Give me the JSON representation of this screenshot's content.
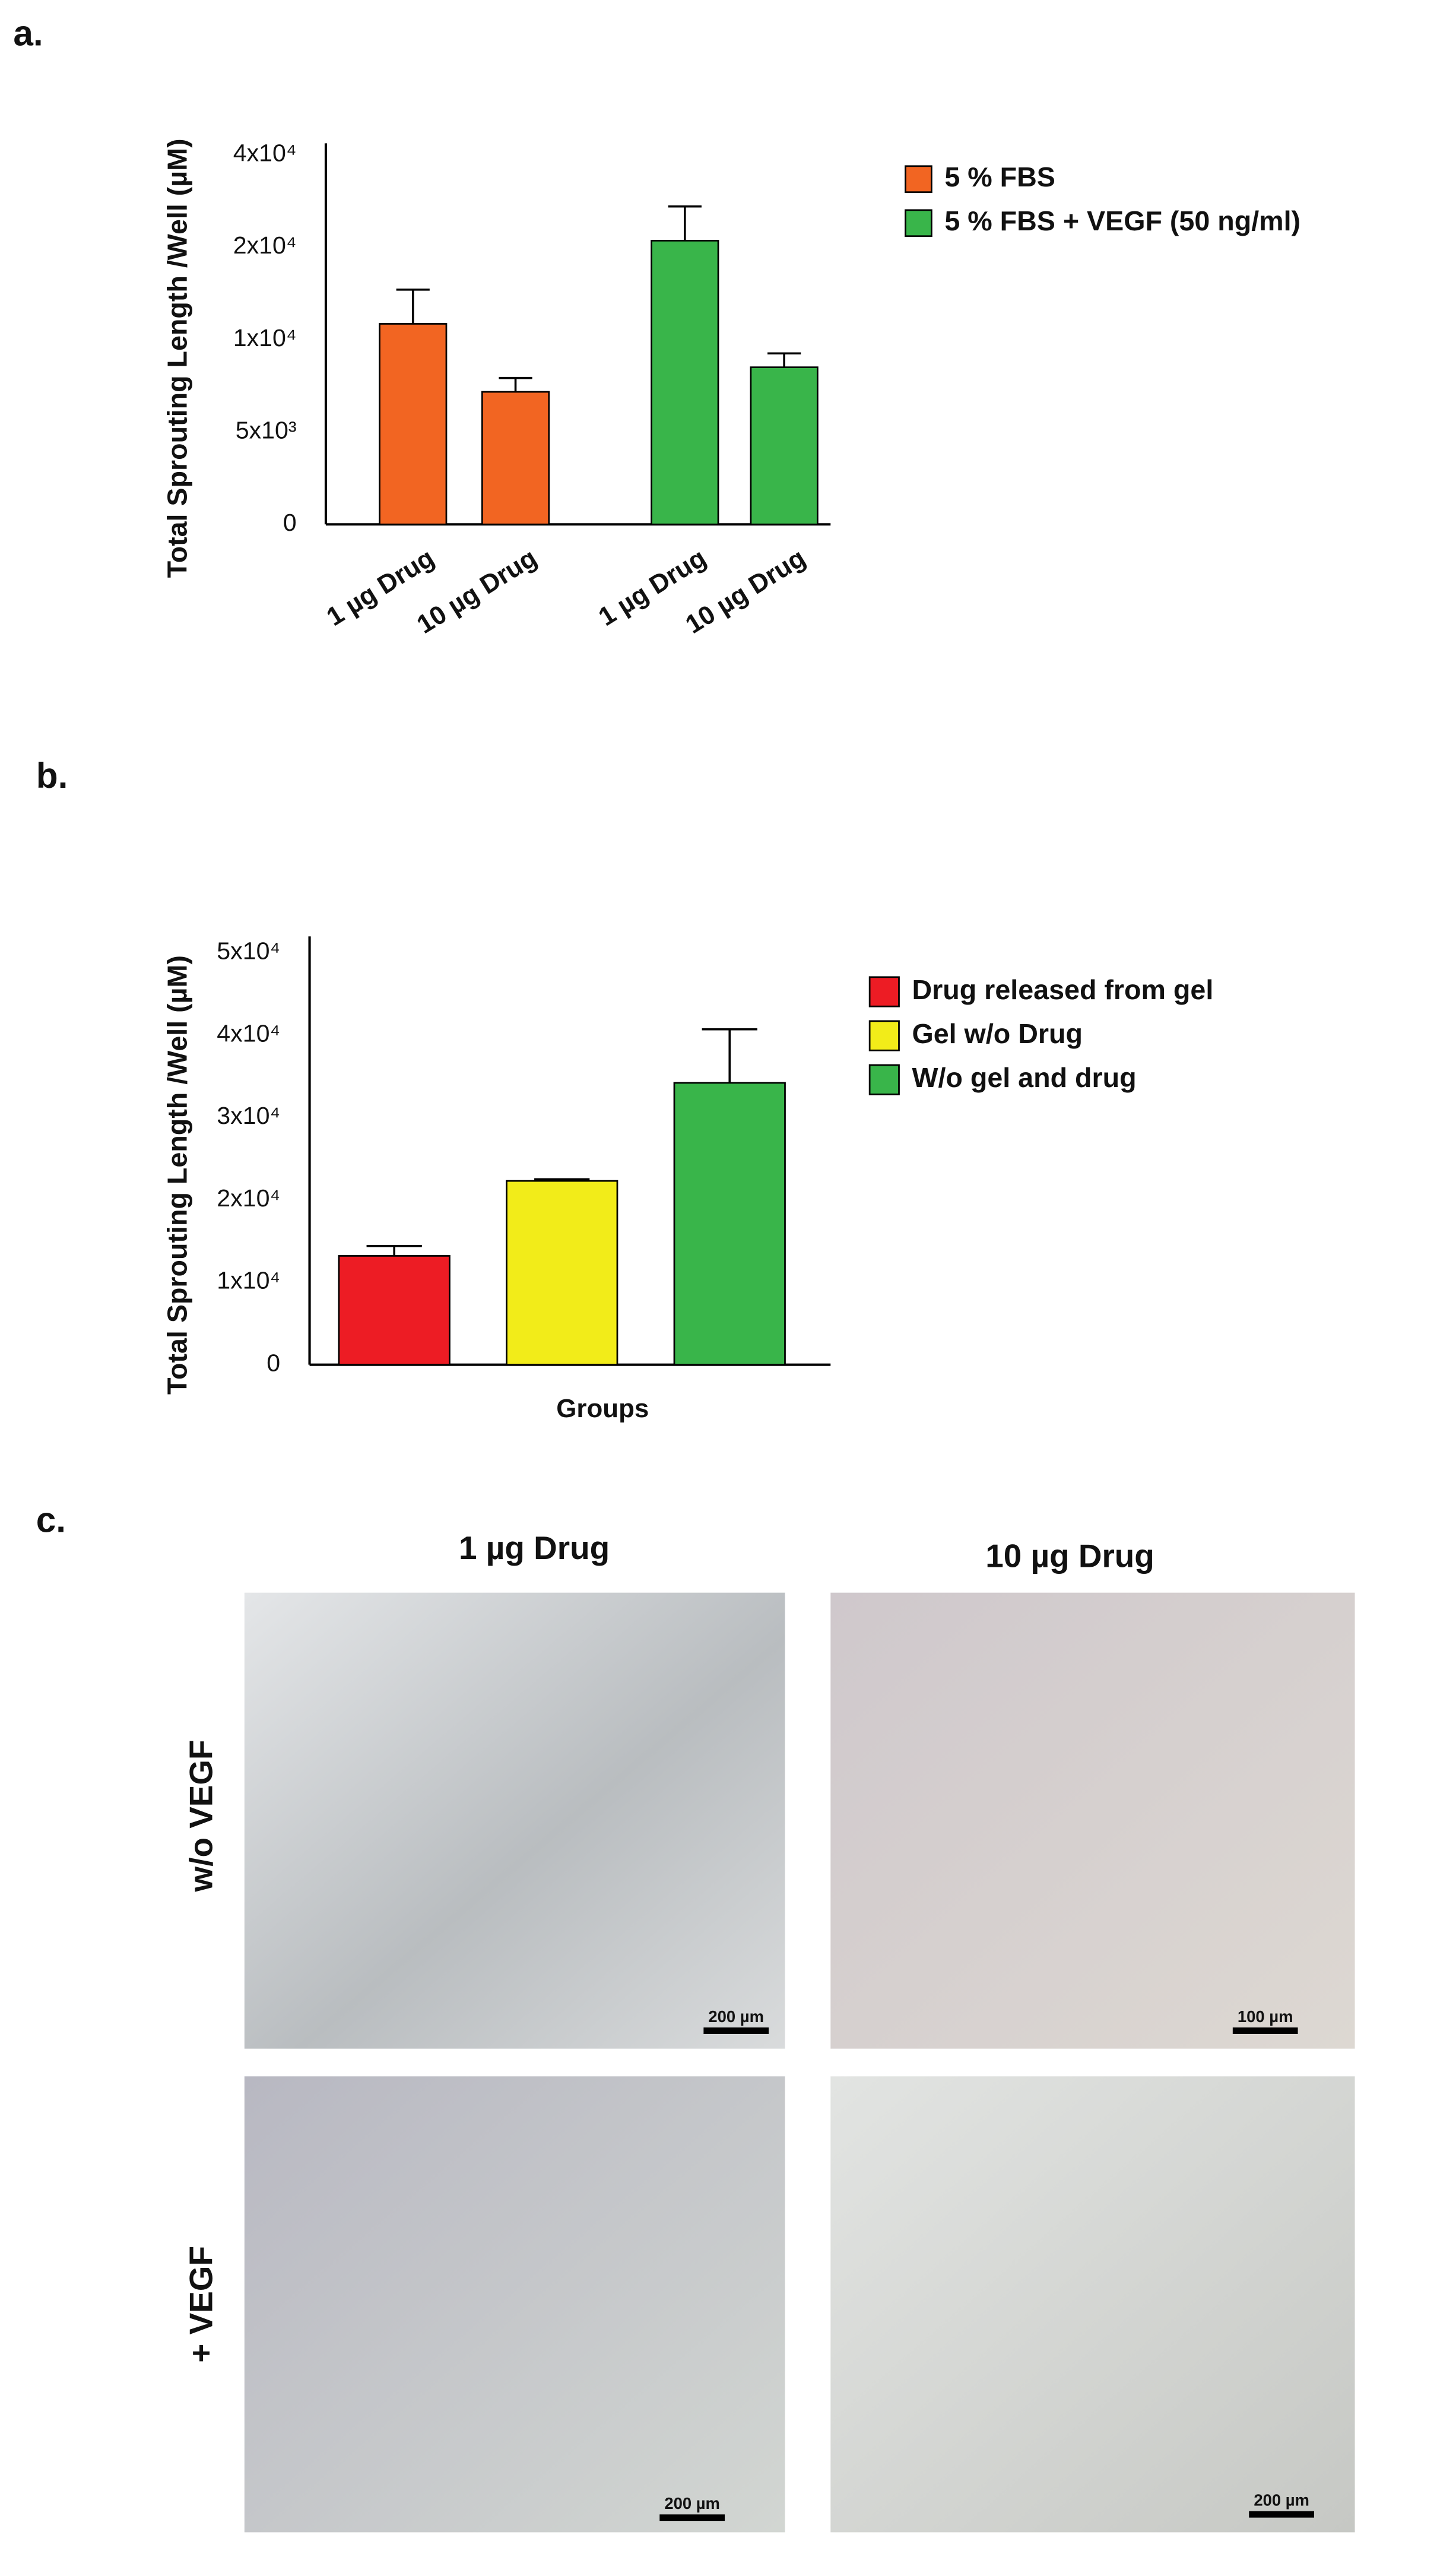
{
  "panel_labels": [
    "a.",
    "b.",
    "c."
  ],
  "chart_data": [
    {
      "type": "bar",
      "y_label": "Total Sprouting Length /Well (µM)",
      "categories": [
        "1 µg Drug",
        "10 µg Drug",
        "1 µg Drug",
        "10 µg Drug"
      ],
      "series": [
        {
          "name": "5 % FBS",
          "color": "#f26522",
          "values": [
            11700,
            7170,
            null,
            null
          ],
          "errors": [
            3700,
            750,
            null,
            null
          ]
        },
        {
          "name": "5 % FBS + VEGF (50 ng/ml)",
          "color": "#39b54a",
          "values": [
            null,
            null,
            21400,
            8500
          ],
          "errors": [
            null,
            null,
            7400,
            750
          ]
        }
      ],
      "ylim": [
        0,
        40000
      ],
      "yticks": [
        0,
        {
          "value": 5000,
          "label": "5x10³"
        },
        {
          "value": 10000,
          "label": "1x10⁴"
        },
        {
          "value": 20000,
          "label": "2x10⁴"
        },
        {
          "value": 40000,
          "label": "4x10⁴"
        }
      ],
      "legend": "right"
    },
    {
      "type": "bar",
      "y_label": "Total Sprouting Length /Well (µM)",
      "x_label": "Groups",
      "series": [
        {
          "name": "Drug released from gel",
          "color": "#ed1c24",
          "values": [
            13200
          ],
          "errors": [
            1200
          ]
        },
        {
          "name": "Gel w/o Drug",
          "color": "#f2ec19",
          "values": [
            22300
          ],
          "errors": [
            200
          ]
        },
        {
          "name": "W/o gel and drug",
          "color": "#39b54a",
          "values": [
            34200
          ],
          "errors": [
            6500
          ]
        }
      ],
      "ylim": [
        0,
        50000
      ],
      "yticks": [
        0,
        {
          "value": 10000,
          "label": "1x10⁴"
        },
        {
          "value": 20000,
          "label": "2x10⁴"
        },
        {
          "value": 30000,
          "label": "3x10⁴"
        },
        {
          "value": 40000,
          "label": "4x10⁴"
        },
        {
          "value": 50000,
          "label": "5x10⁴"
        }
      ],
      "legend": "right"
    }
  ],
  "micrographs": {
    "columns": [
      "1 µg Drug",
      "10 µg Drug"
    ],
    "rows": [
      "w/o VEGF",
      "+ VEGF"
    ],
    "scale_bars": [
      [
        "200 µm",
        "100 µm"
      ],
      [
        "200 µm",
        "200 µm"
      ]
    ]
  }
}
